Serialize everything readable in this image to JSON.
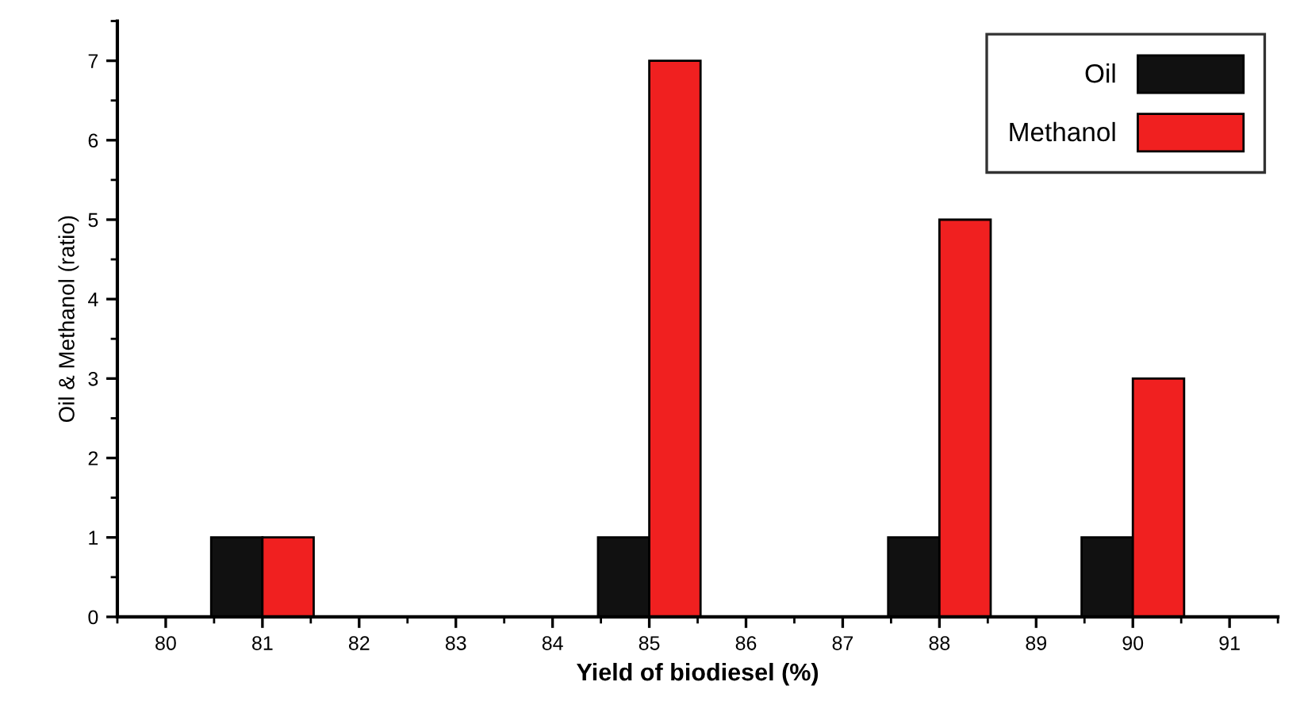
{
  "chart_data": {
    "type": "bar",
    "xlabel": "Yield of biodiesel (%)",
    "ylabel": "Oil & Methanol (ratio)",
    "x": [
      81,
      85,
      88,
      90
    ],
    "series": [
      {
        "name": "Oil",
        "color": "#111111",
        "values": [
          1,
          1,
          1,
          1
        ]
      },
      {
        "name": "Methanol",
        "color": "#f02020",
        "values": [
          1,
          7,
          5,
          3
        ]
      }
    ],
    "xlim": [
      79.5,
      91.5
    ],
    "xticks": [
      80,
      81,
      82,
      83,
      84,
      85,
      86,
      87,
      88,
      89,
      90,
      91
    ],
    "ylim": [
      0,
      7.5
    ],
    "yticks": [
      0,
      1,
      2,
      3,
      4,
      5,
      6,
      7
    ],
    "grid": false,
    "legend": "top right"
  }
}
